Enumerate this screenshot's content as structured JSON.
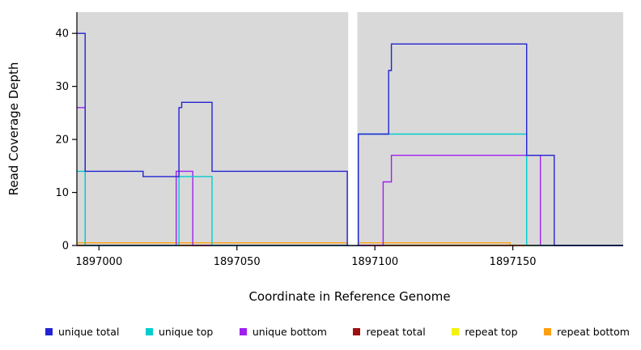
{
  "chart_data": {
    "type": "line",
    "title": "",
    "xlabel": "Coordinate in Reference Genome",
    "ylabel": "Read Coverage Depth",
    "xlim": [
      1896992,
      1897190
    ],
    "ylim": [
      0,
      44
    ],
    "x_ticks": [
      1897000,
      1897050,
      1897100,
      1897150
    ],
    "y_ticks": [
      0,
      10,
      20,
      30,
      40
    ],
    "panel_color": "#d9d9d9",
    "background_color": "#ffffff",
    "gap_x": [
      1897090,
      1897094
    ],
    "grid": false,
    "legend_position": "bottom",
    "series": [
      {
        "name": "unique total",
        "color": "#2323d3",
        "points": [
          [
            1896992,
            40
          ],
          [
            1896995,
            40
          ],
          [
            1896995,
            14
          ],
          [
            1897016,
            14
          ],
          [
            1897016,
            13
          ],
          [
            1897029,
            13
          ],
          [
            1897029,
            26
          ],
          [
            1897030,
            26
          ],
          [
            1897030,
            27
          ],
          [
            1897041,
            27
          ],
          [
            1897041,
            14
          ],
          [
            1897090,
            14
          ],
          [
            1897090,
            0
          ],
          [
            1897094,
            0
          ],
          [
            1897094,
            21
          ],
          [
            1897105,
            21
          ],
          [
            1897105,
            33
          ],
          [
            1897106,
            33
          ],
          [
            1897106,
            38
          ],
          [
            1897155,
            38
          ],
          [
            1897155,
            17
          ],
          [
            1897165,
            17
          ],
          [
            1897165,
            0
          ],
          [
            1897190,
            0
          ]
        ]
      },
      {
        "name": "unique top",
        "color": "#00cdcd",
        "points": [
          [
            1896992,
            14
          ],
          [
            1896995,
            14
          ],
          [
            1896995,
            0
          ],
          [
            1897029,
            0
          ],
          [
            1897029,
            13
          ],
          [
            1897041,
            13
          ],
          [
            1897041,
            0
          ],
          [
            1897094,
            0
          ],
          [
            1897094,
            21
          ],
          [
            1897155,
            21
          ],
          [
            1897155,
            0
          ],
          [
            1897190,
            0
          ]
        ]
      },
      {
        "name": "unique bottom",
        "color": "#a020f0",
        "points": [
          [
            1896992,
            26
          ],
          [
            1896995,
            26
          ],
          [
            1896995,
            0
          ],
          [
            1897028,
            0
          ],
          [
            1897028,
            14
          ],
          [
            1897034,
            14
          ],
          [
            1897034,
            0
          ],
          [
            1897103,
            0
          ],
          [
            1897103,
            12
          ],
          [
            1897106,
            12
          ],
          [
            1897106,
            17
          ],
          [
            1897160,
            17
          ],
          [
            1897160,
            0
          ],
          [
            1897190,
            0
          ]
        ]
      },
      {
        "name": "repeat total",
        "color": "#a01010",
        "points": [
          [
            1896992,
            0
          ],
          [
            1897190,
            0
          ]
        ]
      },
      {
        "name": "repeat top",
        "color": "#f2f20c",
        "points": [
          [
            1896992,
            0
          ],
          [
            1897190,
            0
          ]
        ]
      },
      {
        "name": "repeat bottom",
        "color": "#ff9f0e",
        "points": [
          [
            1896992,
            0.5
          ],
          [
            1897090,
            0.5
          ],
          [
            1897090,
            0
          ],
          [
            1897094,
            0
          ],
          [
            1897094,
            0.5
          ],
          [
            1897149,
            0.5
          ],
          [
            1897149,
            0
          ],
          [
            1897190,
            0
          ]
        ]
      }
    ]
  }
}
